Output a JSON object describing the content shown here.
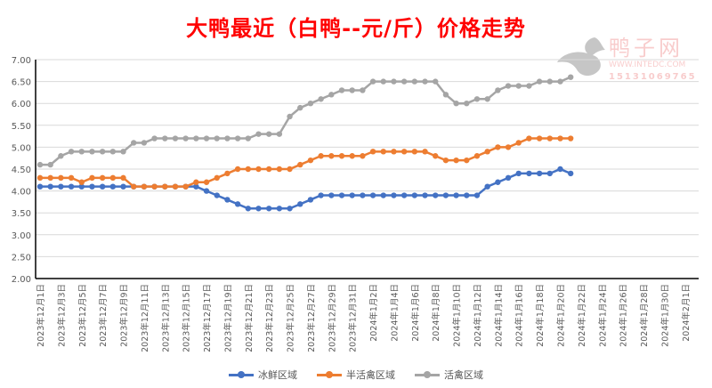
{
  "chart_data": {
    "type": "line",
    "title": "大鸭最近（白鸭--元/斤）价格走势",
    "xlabel": "",
    "ylabel": "",
    "ylim": [
      2.0,
      7.0
    ],
    "ytick_step": 0.5,
    "y_ticks": [
      "2.00",
      "2.50",
      "3.00",
      "3.50",
      "4.00",
      "4.50",
      "5.00",
      "5.50",
      "6.00",
      "6.50",
      "7.00"
    ],
    "x_ticks": [
      "2023年12月1日",
      "2023年12月3日",
      "2023年12月5日",
      "2023年12月7日",
      "2023年12月9日",
      "2023年12月11日",
      "2023年12月13日",
      "2023年12月15日",
      "2023年12月17日",
      "2023年12月19日",
      "2023年12月21日",
      "2023年12月23日",
      "2023年12月25日",
      "2023年12月27日",
      "2023年12月29日",
      "2023年12月31日",
      "2024年1月2日",
      "2024年1月4日",
      "2024年1月6日",
      "2024年1月8日",
      "2024年1月10日",
      "2024年1月12日",
      "2024年1月14日",
      "2024年1月16日",
      "2024年1月18日",
      "2024年1月20日",
      "2024年1月22日",
      "2024年1月24日",
      "2024年1月26日",
      "2024年1月28日",
      "2024年1月30日",
      "2024年2月1日"
    ],
    "x_start": "2023年12月1日",
    "x_days_span": 62,
    "grid": true,
    "legend_position": "bottom",
    "series": [
      {
        "name": "冰鲜区域",
        "color": "#4472c4",
        "values": [
          4.1,
          4.1,
          4.1,
          4.1,
          4.1,
          4.1,
          4.1,
          4.1,
          4.1,
          4.1,
          4.1,
          4.1,
          4.1,
          4.1,
          4.1,
          4.1,
          4.0,
          3.9,
          3.8,
          3.7,
          3.6,
          3.6,
          3.6,
          3.6,
          3.6,
          3.7,
          3.8,
          3.9,
          3.9,
          3.9,
          3.9,
          3.9,
          3.9,
          3.9,
          3.9,
          3.9,
          3.9,
          3.9,
          3.9,
          3.9,
          3.9,
          3.9,
          3.9,
          4.1,
          4.2,
          4.3,
          4.4,
          4.4,
          4.4,
          4.4,
          4.5,
          4.4
        ]
      },
      {
        "name": "半活禽区域",
        "color": "#ed7d31",
        "values": [
          4.3,
          4.3,
          4.3,
          4.3,
          4.2,
          4.3,
          4.3,
          4.3,
          4.3,
          4.1,
          4.1,
          4.1,
          4.1,
          4.1,
          4.1,
          4.2,
          4.2,
          4.3,
          4.4,
          4.5,
          4.5,
          4.5,
          4.5,
          4.5,
          4.5,
          4.6,
          4.7,
          4.8,
          4.8,
          4.8,
          4.8,
          4.8,
          4.9,
          4.9,
          4.9,
          4.9,
          4.9,
          4.9,
          4.8,
          4.7,
          4.7,
          4.7,
          4.8,
          4.9,
          5.0,
          5.0,
          5.1,
          5.2,
          5.2,
          5.2,
          5.2,
          5.2
        ]
      },
      {
        "name": "活禽区域",
        "color": "#a5a5a5",
        "values": [
          4.6,
          4.6,
          4.8,
          4.9,
          4.9,
          4.9,
          4.9,
          4.9,
          4.9,
          5.1,
          5.1,
          5.2,
          5.2,
          5.2,
          5.2,
          5.2,
          5.2,
          5.2,
          5.2,
          5.2,
          5.2,
          5.3,
          5.3,
          5.3,
          5.7,
          5.9,
          6.0,
          6.1,
          6.2,
          6.3,
          6.3,
          6.3,
          6.5,
          6.5,
          6.5,
          6.5,
          6.5,
          6.5,
          6.5,
          6.2,
          6.0,
          6.0,
          6.1,
          6.1,
          6.3,
          6.4,
          6.4,
          6.4,
          6.5,
          6.5,
          6.5,
          6.6
        ]
      }
    ]
  },
  "watermark": {
    "name": "鸭子网",
    "url": "WWW.INTEDC.COM",
    "phone": "15131069765"
  }
}
